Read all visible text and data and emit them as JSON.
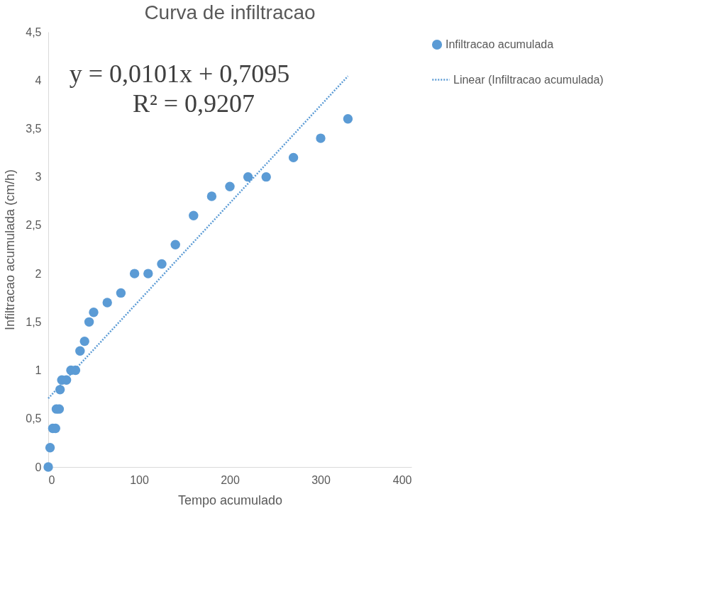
{
  "chart_data": {
    "type": "scatter",
    "title": "Curva de infiltracao",
    "xlabel": "Tempo acumulado",
    "ylabel": "Infiltracao acumulada (cm/h)",
    "xlim": [
      0,
      400
    ],
    "xticks": [
      0,
      100,
      200,
      300,
      400
    ],
    "ylim": [
      0,
      4.5
    ],
    "yticks": [
      {
        "value": 0,
        "label": "0"
      },
      {
        "value": 0.5,
        "label": "0,5"
      },
      {
        "value": 1,
        "label": "1"
      },
      {
        "value": 1.5,
        "label": "1,5"
      },
      {
        "value": 2,
        "label": "2"
      },
      {
        "value": 2.5,
        "label": "2,5"
      },
      {
        "value": 3,
        "label": "3"
      },
      {
        "value": 3.5,
        "label": "3,5"
      },
      {
        "value": 4,
        "label": "4"
      },
      {
        "value": 4.5,
        "label": "4,5"
      }
    ],
    "grid": false,
    "legend": "right",
    "annotations": [
      "y = 0,0101x + 0,7095",
      "R² = 0,9207"
    ],
    "series": [
      {
        "name": "Infiltracao acumulada",
        "marker": "circle",
        "color": "#5b9bd5",
        "x": [
          0,
          2,
          5,
          8,
          9,
          12,
          13,
          15,
          20,
          25,
          30,
          35,
          40,
          45,
          50,
          65,
          80,
          95,
          110,
          125,
          140,
          160,
          180,
          200,
          220,
          240,
          270,
          300,
          330
        ],
        "values": [
          0,
          0.2,
          0.4,
          0.4,
          0.6,
          0.6,
          0.8,
          0.9,
          0.9,
          1.0,
          1.0,
          1.2,
          1.3,
          1.5,
          1.6,
          1.7,
          1.8,
          2.0,
          2.0,
          2.1,
          2.3,
          2.6,
          2.8,
          2.9,
          3.0,
          3.0,
          3.2,
          3.4,
          3.6
        ]
      },
      {
        "name": "Linear (Infiltracao acumulada)",
        "type": "line",
        "marker": "none",
        "line_style": "dotted",
        "color": "#5b9bd5",
        "x": [
          0,
          330
        ],
        "values": [
          0.7095,
          4.0425
        ]
      }
    ]
  }
}
